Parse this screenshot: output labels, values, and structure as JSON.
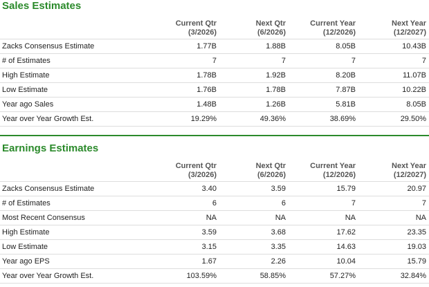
{
  "sales": {
    "title": "Sales Estimates",
    "headers": [
      {
        "line1": "",
        "line2": ""
      },
      {
        "line1": "Current Qtr",
        "line2": "(3/2026)"
      },
      {
        "line1": "Next Qtr",
        "line2": "(6/2026)"
      },
      {
        "line1": "Current Year",
        "line2": "(12/2026)"
      },
      {
        "line1": "Next Year",
        "line2": "(12/2027)"
      }
    ],
    "rows": [
      {
        "label": "Zacks Consensus Estimate",
        "values": [
          "1.77B",
          "1.88B",
          "8.05B",
          "10.43B"
        ]
      },
      {
        "label": "# of Estimates",
        "values": [
          "7",
          "7",
          "7",
          "7"
        ]
      },
      {
        "label": "High Estimate",
        "values": [
          "1.78B",
          "1.92B",
          "8.20B",
          "11.07B"
        ]
      },
      {
        "label": "Low Estimate",
        "values": [
          "1.76B",
          "1.78B",
          "7.87B",
          "10.22B"
        ]
      },
      {
        "label": "Year ago Sales",
        "values": [
          "1.48B",
          "1.26B",
          "5.81B",
          "8.05B"
        ]
      },
      {
        "label": "Year over Year Growth Est.",
        "values": [
          "19.29%",
          "49.36%",
          "38.69%",
          "29.50%"
        ]
      }
    ]
  },
  "earnings": {
    "title": "Earnings Estimates",
    "headers": [
      {
        "line1": "",
        "line2": ""
      },
      {
        "line1": "Current Qtr",
        "line2": "(3/2026)"
      },
      {
        "line1": "Next Qtr",
        "line2": "(6/2026)"
      },
      {
        "line1": "Current Year",
        "line2": "(12/2026)"
      },
      {
        "line1": "Next Year",
        "line2": "(12/2027)"
      }
    ],
    "rows": [
      {
        "label": "Zacks Consensus Estimate",
        "values": [
          "3.40",
          "3.59",
          "15.79",
          "20.97"
        ]
      },
      {
        "label": "# of Estimates",
        "values": [
          "6",
          "6",
          "7",
          "7"
        ]
      },
      {
        "label": "Most Recent Consensus",
        "values": [
          "NA",
          "NA",
          "NA",
          "NA"
        ]
      },
      {
        "label": "High Estimate",
        "values": [
          "3.59",
          "3.68",
          "17.62",
          "23.35"
        ]
      },
      {
        "label": "Low Estimate",
        "values": [
          "3.15",
          "3.35",
          "14.63",
          "19.03"
        ]
      },
      {
        "label": "Year ago EPS",
        "values": [
          "1.67",
          "2.26",
          "10.04",
          "15.79"
        ]
      },
      {
        "label": "Year over Year Growth Est.",
        "values": [
          "103.59%",
          "58.85%",
          "57.27%",
          "32.84%"
        ]
      }
    ]
  },
  "colors": {
    "accent": "#2b8a2b",
    "row_border": "#dddddd",
    "header_text": "#555555"
  }
}
